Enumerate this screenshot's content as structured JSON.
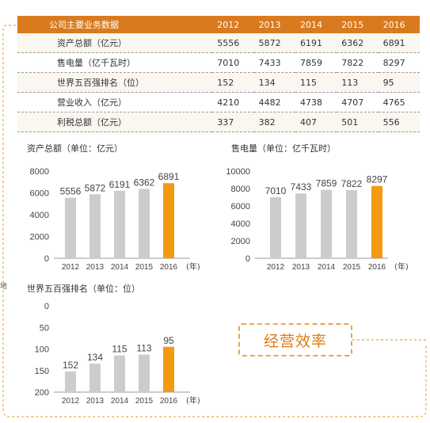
{
  "table": {
    "header": [
      "公司主要业务数据",
      "2012",
      "2013",
      "2014",
      "2015",
      "2016"
    ],
    "rows": [
      {
        "label": "资产总额（亿元）",
        "values": [
          "5556",
          "5872",
          "6191",
          "6362",
          "6891"
        ]
      },
      {
        "label": "售电量（亿千瓦时）",
        "values": [
          "7010",
          "7433",
          "7859",
          "7822",
          "8297"
        ]
      },
      {
        "label": "世界五百强排名（位）",
        "values": [
          "152",
          "134",
          "115",
          "113",
          "95"
        ]
      },
      {
        "label": "营业收入（亿元）",
        "values": [
          "4210",
          "4482",
          "4738",
          "4707",
          "4765"
        ]
      },
      {
        "label": "利税总额（亿元）",
        "values": [
          "337",
          "382",
          "407",
          "501",
          "556"
        ]
      }
    ]
  },
  "side_text": "地",
  "badge": "经营效率",
  "colors": {
    "accent": "#d97a1f",
    "bar": "#cccccc",
    "highlight": "#f39a10",
    "frame": "#e8a64a"
  },
  "chart_data": [
    {
      "type": "bar",
      "title": "资产总额（单位：亿元）",
      "categories": [
        "2012",
        "2013",
        "2014",
        "2015",
        "2016"
      ],
      "values": [
        5556,
        5872,
        6191,
        6362,
        6891
      ],
      "x_unit": "(年)",
      "ylim": [
        0,
        8000
      ],
      "yticks": [
        "0",
        "2000",
        "4000",
        "6000",
        "8000"
      ],
      "highlight_index": 4
    },
    {
      "type": "bar",
      "title": "售电量（单位：亿千瓦时）",
      "categories": [
        "2012",
        "2013",
        "2014",
        "2015",
        "2016"
      ],
      "values": [
        7010,
        7433,
        7859,
        7822,
        8297
      ],
      "x_unit": "(年)",
      "ylim": [
        0,
        10000
      ],
      "yticks": [
        "0",
        "2000",
        "4000",
        "6000",
        "8000",
        "10000"
      ],
      "highlight_index": 4
    },
    {
      "type": "bar",
      "title": "世界五百强排名（单位：位）",
      "categories": [
        "2012",
        "2013",
        "2014",
        "2015",
        "2016"
      ],
      "values": [
        152,
        134,
        115,
        113,
        95
      ],
      "x_unit": "(年)",
      "ylim": [
        200,
        0
      ],
      "yticks": [
        "0",
        "50",
        "100",
        "150",
        "200"
      ],
      "y_inverted": true,
      "highlight_index": 4
    }
  ]
}
